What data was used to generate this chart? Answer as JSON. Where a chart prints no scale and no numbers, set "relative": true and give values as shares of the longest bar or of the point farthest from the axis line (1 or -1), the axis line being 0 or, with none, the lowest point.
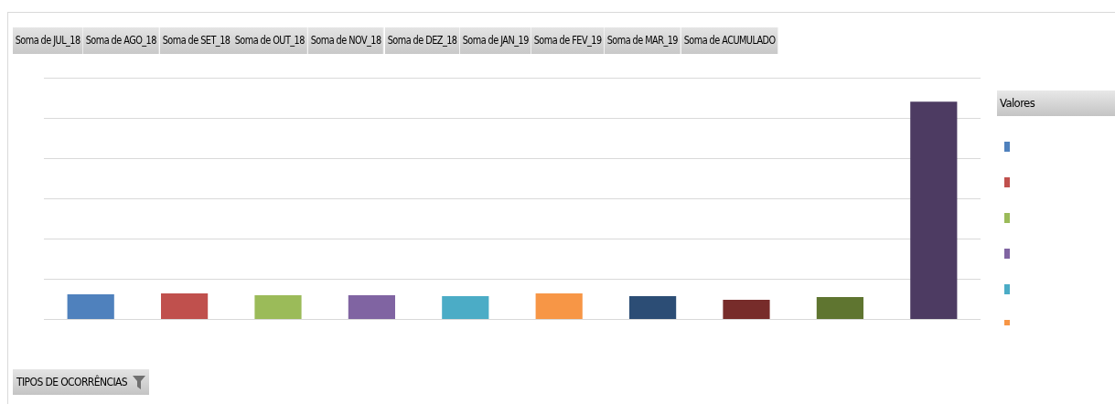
{
  "chart_data": {
    "type": "bar",
    "relative": true,
    "legend_title": "Valores",
    "grid": "y",
    "categories": [
      null,
      null,
      null,
      null,
      null,
      null,
      null,
      null,
      null,
      null
    ],
    "values": [
      0.113,
      0.118,
      0.109,
      0.109,
      0.105,
      0.118,
      0.105,
      0.088,
      0.101,
      1
    ],
    "colors": [
      "#4f81bd",
      "#c0504d",
      "#9bbb59",
      "#8064a2",
      "#4bacc6",
      "#f79646",
      "#2c4d75",
      "#772c2a",
      "#5f7530",
      "#4d3b62"
    ],
    "annotations": [
      "Soma de JUL_18",
      "Soma de AGO_18",
      "Soma de SET_18",
      "Soma de OUT_18",
      "Soma de NOV_18",
      "Soma de DEZ_18",
      "Soma de JAN_19",
      "Soma de FEV_19",
      "Soma de MAR_19",
      "Soma de ACUMULADO",
      "TIPOS DE OCORRÊNCIAS"
    ]
  }
}
